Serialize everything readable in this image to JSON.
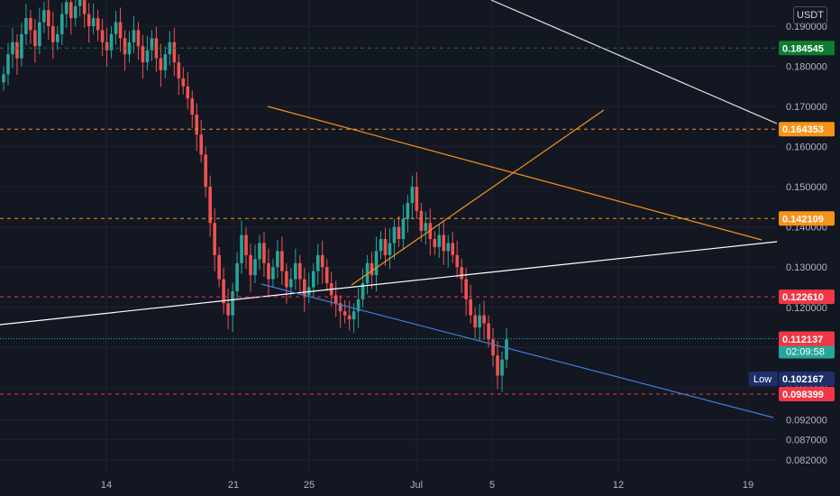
{
  "currency": "USDT",
  "colors": {
    "background": "#131722",
    "up": "#26a69a",
    "down": "#ef5350",
    "orange": "#f7931a",
    "green": "#0d7d31",
    "red_tag": "#f23645",
    "navy": "#1e2f6b",
    "teal_tag": "#26a69a"
  },
  "chart_data": {
    "type": "candlestick",
    "x_ticks": [
      "14",
      "21",
      "25",
      "Jul",
      "5",
      "12",
      "19"
    ],
    "y_ticks": [
      "0.190000",
      "0.180000",
      "0.170000",
      "0.160000",
      "0.150000",
      "0.140000",
      "0.130000",
      "0.120000",
      "0.110000",
      "0.100000",
      "0.092000",
      "0.087000",
      "0.082000"
    ],
    "ylim": [
      0.079,
      0.198
    ],
    "price_lines": [
      {
        "value": 0.184545,
        "label": "0.184545",
        "color": "#0d7d31",
        "line_style": "dashed-green"
      },
      {
        "value": 0.164353,
        "label": "0.164353",
        "color": "#f7931a",
        "line_style": "dashed-orange"
      },
      {
        "value": 0.142109,
        "label": "0.142109",
        "color": "#f7931a",
        "line_style": "dashed-orange"
      },
      {
        "value": 0.12261,
        "label": "0.122610",
        "color": "#f23645",
        "line_style": "dashed-red"
      },
      {
        "value": 0.098399,
        "label": "0.098399",
        "color": "#f23645",
        "line_style": "dashed-red"
      }
    ],
    "current_price": {
      "value": 0.112207,
      "label": "0.112207",
      "countdown": "02:09:58"
    },
    "ask_price": {
      "value": 0.112137,
      "label": "0.112137"
    },
    "low": {
      "label": "Low",
      "value": 0.102167,
      "value_label": "0.102167"
    },
    "series": {
      "name": "",
      "candles_note": "hourly candles, roughly Jun 10 – Jul 5",
      "closes": [
        0.178,
        0.183,
        0.186,
        0.182,
        0.188,
        0.192,
        0.189,
        0.185,
        0.191,
        0.194,
        0.19,
        0.186,
        0.188,
        0.193,
        0.196,
        0.192,
        0.195,
        0.197,
        0.193,
        0.19,
        0.192,
        0.189,
        0.186,
        0.184,
        0.188,
        0.191,
        0.187,
        0.183,
        0.186,
        0.189,
        0.185,
        0.181,
        0.184,
        0.187,
        0.182,
        0.179,
        0.183,
        0.186,
        0.181,
        0.177,
        0.175,
        0.172,
        0.168,
        0.163,
        0.158,
        0.15,
        0.141,
        0.133,
        0.127,
        0.121,
        0.118,
        0.124,
        0.131,
        0.138,
        0.133,
        0.128,
        0.132,
        0.136,
        0.131,
        0.127,
        0.13,
        0.134,
        0.129,
        0.125,
        0.127,
        0.131,
        0.127,
        0.123,
        0.125,
        0.129,
        0.133,
        0.13,
        0.126,
        0.123,
        0.121,
        0.119,
        0.118,
        0.117,
        0.119,
        0.122,
        0.126,
        0.131,
        0.128,
        0.134,
        0.137,
        0.133,
        0.136,
        0.14,
        0.137,
        0.142,
        0.146,
        0.15,
        0.144,
        0.139,
        0.141,
        0.137,
        0.135,
        0.138,
        0.134,
        0.136,
        0.133,
        0.13,
        0.127,
        0.122,
        0.118,
        0.115,
        0.118,
        0.116,
        0.112,
        0.108,
        0.103,
        0.107,
        0.112
      ],
      "trendlines": [
        {
          "name": "upper",
          "color": "#f7931a"
        },
        {
          "name": "lower",
          "color": "#2962ff"
        },
        {
          "name": "support",
          "color": "#ffffff"
        }
      ]
    }
  }
}
